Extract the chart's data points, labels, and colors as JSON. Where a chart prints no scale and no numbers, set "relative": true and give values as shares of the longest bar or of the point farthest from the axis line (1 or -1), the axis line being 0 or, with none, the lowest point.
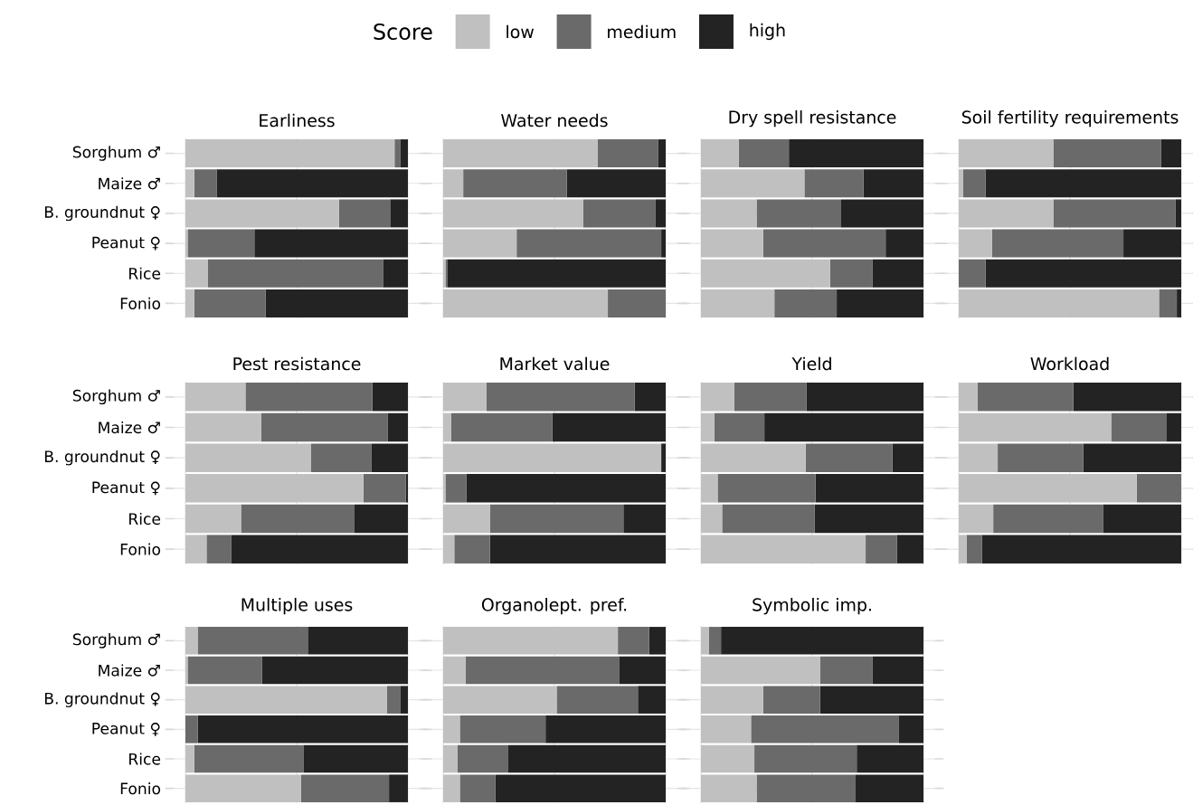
{
  "chart_data": [
    {
      "type": "bar",
      "orientation": "horizontal",
      "stacked": true,
      "relative": true,
      "grid": true,
      "tick_labels": "y",
      "legend": "top",
      "legend_title": "Score",
      "title": "Earliness",
      "categories": [
        "Sorghum ♂",
        "Maize ♂",
        "B. groundnut ♀",
        "Peanut ♀",
        "Rice",
        "Fonio"
      ],
      "series": [
        {
          "name": "low",
          "color": "#c0c0c0",
          "values": [
            0.94,
            0.04,
            0.69,
            0.01,
            0.1,
            0.04
          ]
        },
        {
          "name": "medium",
          "color": "#6a6a6a",
          "values": [
            0.025,
            0.1,
            0.23,
            0.3,
            0.79,
            0.32
          ]
        },
        {
          "name": "high",
          "color": "#232323",
          "values": [
            0.035,
            0.86,
            0.08,
            0.69,
            0.11,
            0.64
          ]
        }
      ]
    },
    {
      "type": "bar",
      "orientation": "horizontal",
      "stacked": true,
      "relative": true,
      "grid": true,
      "tick_labels": false,
      "title": "Water needs",
      "categories": [
        null,
        null,
        null,
        null,
        null,
        null
      ],
      "series": [
        {
          "color": "#c0c0c0",
          "values": [
            0.695,
            0.09,
            0.63,
            0.33,
            0.01,
            0.74
          ]
        },
        {
          "color": "#6a6a6a",
          "values": [
            0.27,
            0.465,
            0.325,
            0.65,
            0.01,
            0.26
          ]
        },
        {
          "color": "#232323",
          "values": [
            0.035,
            0.445,
            0.045,
            0.02,
            0.98,
            0
          ]
        }
      ]
    },
    {
      "type": "bar",
      "orientation": "horizontal",
      "stacked": true,
      "relative": true,
      "grid": true,
      "tick_labels": false,
      "title": "Dry spell resistance",
      "categories": [
        null,
        null,
        null,
        null,
        null,
        null
      ],
      "series": [
        {
          "color": "#c0c0c0",
          "values": [
            0.17,
            0.465,
            0.25,
            0.28,
            0.58,
            0.33
          ]
        },
        {
          "color": "#6a6a6a",
          "values": [
            0.225,
            0.265,
            0.38,
            0.55,
            0.19,
            0.28
          ]
        },
        {
          "color": "#232323",
          "values": [
            0.605,
            0.27,
            0.37,
            0.17,
            0.23,
            0.39
          ]
        }
      ]
    },
    {
      "type": "bar",
      "orientation": "horizontal",
      "stacked": true,
      "relative": true,
      "grid": true,
      "tick_labels": false,
      "title": "Soil fertility requirements",
      "categories": [
        null,
        null,
        null,
        null,
        null,
        null
      ],
      "series": [
        {
          "color": "#c0c0c0",
          "values": [
            0.425,
            0.02,
            0.425,
            0.15,
            0,
            0.9
          ]
        },
        {
          "color": "#6a6a6a",
          "values": [
            0.485,
            0.1,
            0.55,
            0.59,
            0.12,
            0.08
          ]
        },
        {
          "color": "#232323",
          "values": [
            0.09,
            0.88,
            0.025,
            0.26,
            0.88,
            0.02
          ]
        }
      ]
    },
    {
      "type": "bar",
      "orientation": "horizontal",
      "stacked": true,
      "relative": true,
      "grid": true,
      "tick_labels": "y",
      "title": "Pest resistance",
      "categories": [
        "Sorghum ♂",
        "Maize ♂",
        "B. groundnut ♀",
        "Peanut ♀",
        "Rice",
        "Fonio"
      ],
      "series": [
        {
          "color": "#c0c0c0",
          "values": [
            0.27,
            0.34,
            0.565,
            0.8,
            0.25,
            0.095
          ]
        },
        {
          "color": "#6a6a6a",
          "values": [
            0.57,
            0.57,
            0.27,
            0.19,
            0.51,
            0.11
          ]
        },
        {
          "color": "#232323",
          "values": [
            0.16,
            0.09,
            0.165,
            0.01,
            0.24,
            0.795
          ]
        }
      ]
    },
    {
      "type": "bar",
      "orientation": "horizontal",
      "stacked": true,
      "relative": true,
      "grid": true,
      "tick_labels": false,
      "title": "Market value",
      "categories": [
        null,
        null,
        null,
        null,
        null,
        null
      ],
      "series": [
        {
          "color": "#c0c0c0",
          "values": [
            0.195,
            0.035,
            0.98,
            0.01,
            0.21,
            0.05
          ]
        },
        {
          "color": "#6a6a6a",
          "values": [
            0.665,
            0.455,
            0,
            0.095,
            0.6,
            0.16
          ]
        },
        {
          "color": "#232323",
          "values": [
            0.14,
            0.51,
            0.02,
            0.895,
            0.19,
            0.79
          ]
        }
      ]
    },
    {
      "type": "bar",
      "orientation": "horizontal",
      "stacked": true,
      "relative": true,
      "grid": true,
      "tick_labels": false,
      "title": "Yield",
      "categories": [
        null,
        null,
        null,
        null,
        null,
        null
      ],
      "series": [
        {
          "color": "#c0c0c0",
          "values": [
            0.15,
            0.06,
            0.47,
            0.075,
            0.095,
            0.74
          ]
        },
        {
          "color": "#6a6a6a",
          "values": [
            0.325,
            0.225,
            0.39,
            0.44,
            0.415,
            0.14
          ]
        },
        {
          "color": "#232323",
          "values": [
            0.525,
            0.715,
            0.14,
            0.485,
            0.49,
            0.12
          ]
        }
      ]
    },
    {
      "type": "bar",
      "orientation": "horizontal",
      "stacked": true,
      "relative": true,
      "grid": true,
      "tick_labels": false,
      "title": "Workload",
      "categories": [
        null,
        null,
        null,
        null,
        null,
        null
      ],
      "series": [
        {
          "color": "#c0c0c0",
          "values": [
            0.085,
            0.685,
            0.175,
            0.8,
            0.155,
            0.035
          ]
        },
        {
          "color": "#6a6a6a",
          "values": [
            0.43,
            0.25,
            0.385,
            0.2,
            0.495,
            0.07
          ]
        },
        {
          "color": "#232323",
          "values": [
            0.485,
            0.065,
            0.44,
            0,
            0.35,
            0.895
          ]
        }
      ]
    },
    {
      "type": "bar",
      "orientation": "horizontal",
      "stacked": true,
      "relative": true,
      "grid": true,
      "tick_labels": "y",
      "title": "Multiple uses",
      "categories": [
        "Sorghum ♂",
        "Maize ♂",
        "B. groundnut ♀",
        "Peanut ♀",
        "Rice",
        "Fonio"
      ],
      "series": [
        {
          "color": "#c0c0c0",
          "values": [
            0.055,
            0.01,
            0.905,
            0,
            0.04,
            0.52
          ]
        },
        {
          "color": "#6a6a6a",
          "values": [
            0.495,
            0.335,
            0.06,
            0.055,
            0.49,
            0.395
          ]
        },
        {
          "color": "#232323",
          "values": [
            0.45,
            0.655,
            0.035,
            0.945,
            0.47,
            0.085
          ]
        }
      ]
    },
    {
      "type": "bar",
      "orientation": "horizontal",
      "stacked": true,
      "relative": true,
      "grid": true,
      "tick_labels": false,
      "title": "Organolept. pref.",
      "categories": [
        null,
        null,
        null,
        null,
        null,
        null
      ],
      "series": [
        {
          "color": "#c0c0c0",
          "values": [
            0.785,
            0.1,
            0.51,
            0.075,
            0.065,
            0.075
          ]
        },
        {
          "color": "#6a6a6a",
          "values": [
            0.14,
            0.69,
            0.365,
            0.385,
            0.225,
            0.16
          ]
        },
        {
          "color": "#232323",
          "values": [
            0.075,
            0.21,
            0.125,
            0.54,
            0.71,
            0.765
          ]
        }
      ]
    },
    {
      "type": "bar",
      "orientation": "horizontal",
      "stacked": true,
      "relative": true,
      "grid": true,
      "tick_labels": false,
      "title": "Symbolic imp.",
      "categories": [
        null,
        null,
        null,
        null,
        null,
        null
      ],
      "series": [
        {
          "color": "#c0c0c0",
          "values": [
            0.035,
            0.535,
            0.28,
            0.225,
            0.24,
            0.25
          ]
        },
        {
          "color": "#6a6a6a",
          "values": [
            0.055,
            0.235,
            0.255,
            0.665,
            0.46,
            0.445
          ]
        },
        {
          "color": "#232323",
          "values": [
            0.91,
            0.23,
            0.465,
            0.11,
            0.3,
            0.305
          ]
        }
      ]
    }
  ]
}
